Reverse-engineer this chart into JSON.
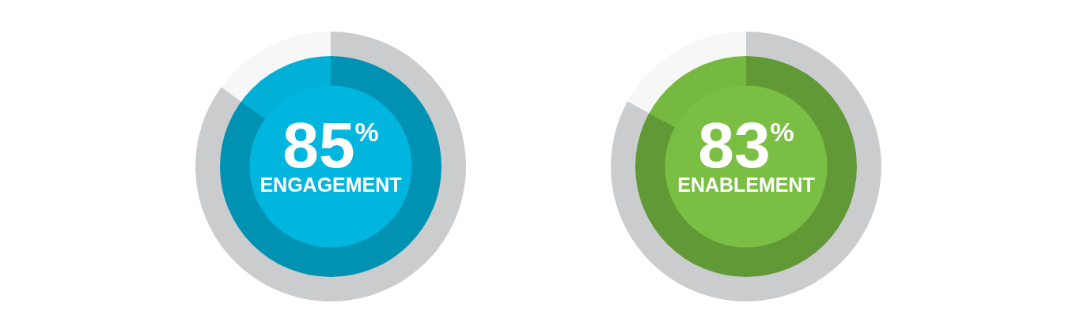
{
  "chart_data": [
    {
      "type": "donut",
      "categories": [
        "ENGAGEMENT",
        null
      ],
      "values": [
        85,
        15
      ],
      "colors": [
        "#cbcccd",
        "#f7f7f7"
      ],
      "value_labels": [
        "85$^{%}$",
        null
      ]
    },
    {
      "type": "donut",
      "categories": [
        "ENABLEMENT",
        null
      ],
      "values": [
        83,
        17
      ],
      "colors": [
        "#cbcccd",
        "#f7f7f7"
      ],
      "value_labels": [
        "83$^{%}$",
        null
      ]
    }
  ]
}
